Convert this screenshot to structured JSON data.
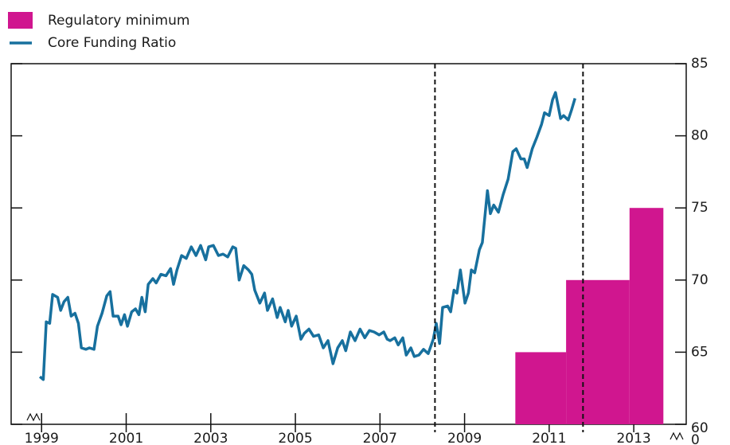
{
  "chart_data": {
    "type": "line",
    "series": [
      {
        "name": "Core Funding Ratio",
        "color": "#17709e",
        "x": [
          1998.96,
          1999.04,
          1999.11,
          1999.19,
          1999.26,
          1999.38,
          1999.45,
          1999.53,
          1999.62,
          1999.7,
          1999.79,
          1999.87,
          1999.94,
          2000.05,
          2000.13,
          2000.24,
          2000.32,
          2000.43,
          2000.54,
          2000.62,
          2000.69,
          2000.81,
          2000.88,
          2000.96,
          2001.03,
          2001.13,
          2001.22,
          2001.3,
          2001.37,
          2001.45,
          2001.52,
          2001.63,
          2001.71,
          2001.82,
          2001.94,
          2002.05,
          2002.12,
          2002.2,
          2002.31,
          2002.42,
          2002.54,
          2002.65,
          2002.76,
          2002.88,
          2002.95,
          2003.06,
          2003.18,
          2003.29,
          2003.4,
          2003.52,
          2003.59,
          2003.67,
          2003.78,
          2003.89,
          2003.97,
          2004.04,
          2004.16,
          2004.27,
          2004.34,
          2004.46,
          2004.57,
          2004.64,
          2004.76,
          2004.83,
          2004.91,
          2005.02,
          2005.13,
          2005.21,
          2005.32,
          2005.43,
          2005.55,
          2005.66,
          2005.77,
          2005.89,
          2006.0,
          2006.11,
          2006.19,
          2006.3,
          2006.41,
          2006.53,
          2006.64,
          2006.75,
          2006.86,
          2006.98,
          2007.09,
          2007.17,
          2007.24,
          2007.35,
          2007.43,
          2007.54,
          2007.62,
          2007.73,
          2007.81,
          2007.92,
          2008.03,
          2008.14,
          2008.26,
          2008.33,
          2008.41,
          2008.48,
          2008.6,
          2008.67,
          2008.75,
          2008.82,
          2008.9,
          2009.01,
          2009.09,
          2009.16,
          2009.24,
          2009.35,
          2009.42,
          2009.54,
          2009.61,
          2009.69,
          2009.8,
          2009.91,
          2010.03,
          2010.14,
          2010.22,
          2010.33,
          2010.41,
          2010.48,
          2010.6,
          2010.71,
          2010.82,
          2010.89,
          2011.0,
          2011.08,
          2011.15,
          2011.27,
          2011.34,
          2011.45,
          2011.53,
          2011.61
        ],
        "values": [
          63.3,
          63.1,
          67.1,
          67.0,
          69.0,
          68.8,
          67.9,
          68.5,
          68.8,
          67.5,
          67.7,
          67.0,
          65.3,
          65.2,
          65.3,
          65.2,
          66.8,
          67.7,
          68.9,
          69.2,
          67.5,
          67.5,
          66.9,
          67.6,
          66.8,
          67.8,
          68.0,
          67.6,
          68.8,
          67.8,
          69.7,
          70.1,
          69.8,
          70.4,
          70.3,
          70.8,
          69.7,
          70.7,
          71.7,
          71.5,
          72.3,
          71.7,
          72.4,
          71.4,
          72.3,
          72.4,
          71.7,
          71.8,
          71.6,
          72.3,
          72.2,
          70.0,
          71.0,
          70.7,
          70.4,
          69.3,
          68.4,
          69.1,
          67.9,
          68.7,
          67.4,
          68.1,
          67.1,
          67.9,
          66.8,
          67.5,
          65.9,
          66.3,
          66.6,
          66.1,
          66.2,
          65.3,
          65.8,
          64.2,
          65.3,
          65.8,
          65.1,
          66.4,
          65.8,
          66.6,
          66.0,
          66.5,
          66.4,
          66.2,
          66.4,
          65.9,
          65.8,
          66.0,
          65.5,
          66.0,
          64.8,
          65.3,
          64.7,
          64.8,
          65.2,
          64.9,
          65.9,
          67.0,
          65.6,
          68.1,
          68.2,
          67.8,
          69.3,
          69.1,
          70.7,
          68.4,
          69.1,
          70.7,
          70.5,
          72.1,
          72.6,
          76.2,
          74.6,
          75.2,
          74.7,
          75.9,
          77.0,
          78.9,
          79.1,
          78.4,
          78.4,
          77.8,
          79.1,
          79.9,
          80.8,
          81.6,
          81.4,
          82.5,
          83.0,
          81.2,
          81.4,
          81.1,
          81.8,
          82.6
        ]
      }
    ],
    "bars": {
      "type": "bar",
      "name": "Regulatory minimum",
      "color": "#d0168f",
      "x_start": [
        2010.2,
        2011.4,
        2012.9
      ],
      "x_end": [
        2011.4,
        2012.9,
        2013.7
      ],
      "values": [
        65,
        70,
        75
      ]
    },
    "reference_lines": [
      2008.3,
      2011.8
    ],
    "xlim": [
      1998.28,
      2014.24
    ],
    "xticks": [
      1999,
      2001,
      2003,
      2005,
      2007,
      2009,
      2011,
      2013
    ],
    "ylim": [
      60,
      85
    ],
    "yticks": [
      60,
      65,
      70,
      75,
      80,
      85
    ],
    "y_break_label": "0"
  }
}
